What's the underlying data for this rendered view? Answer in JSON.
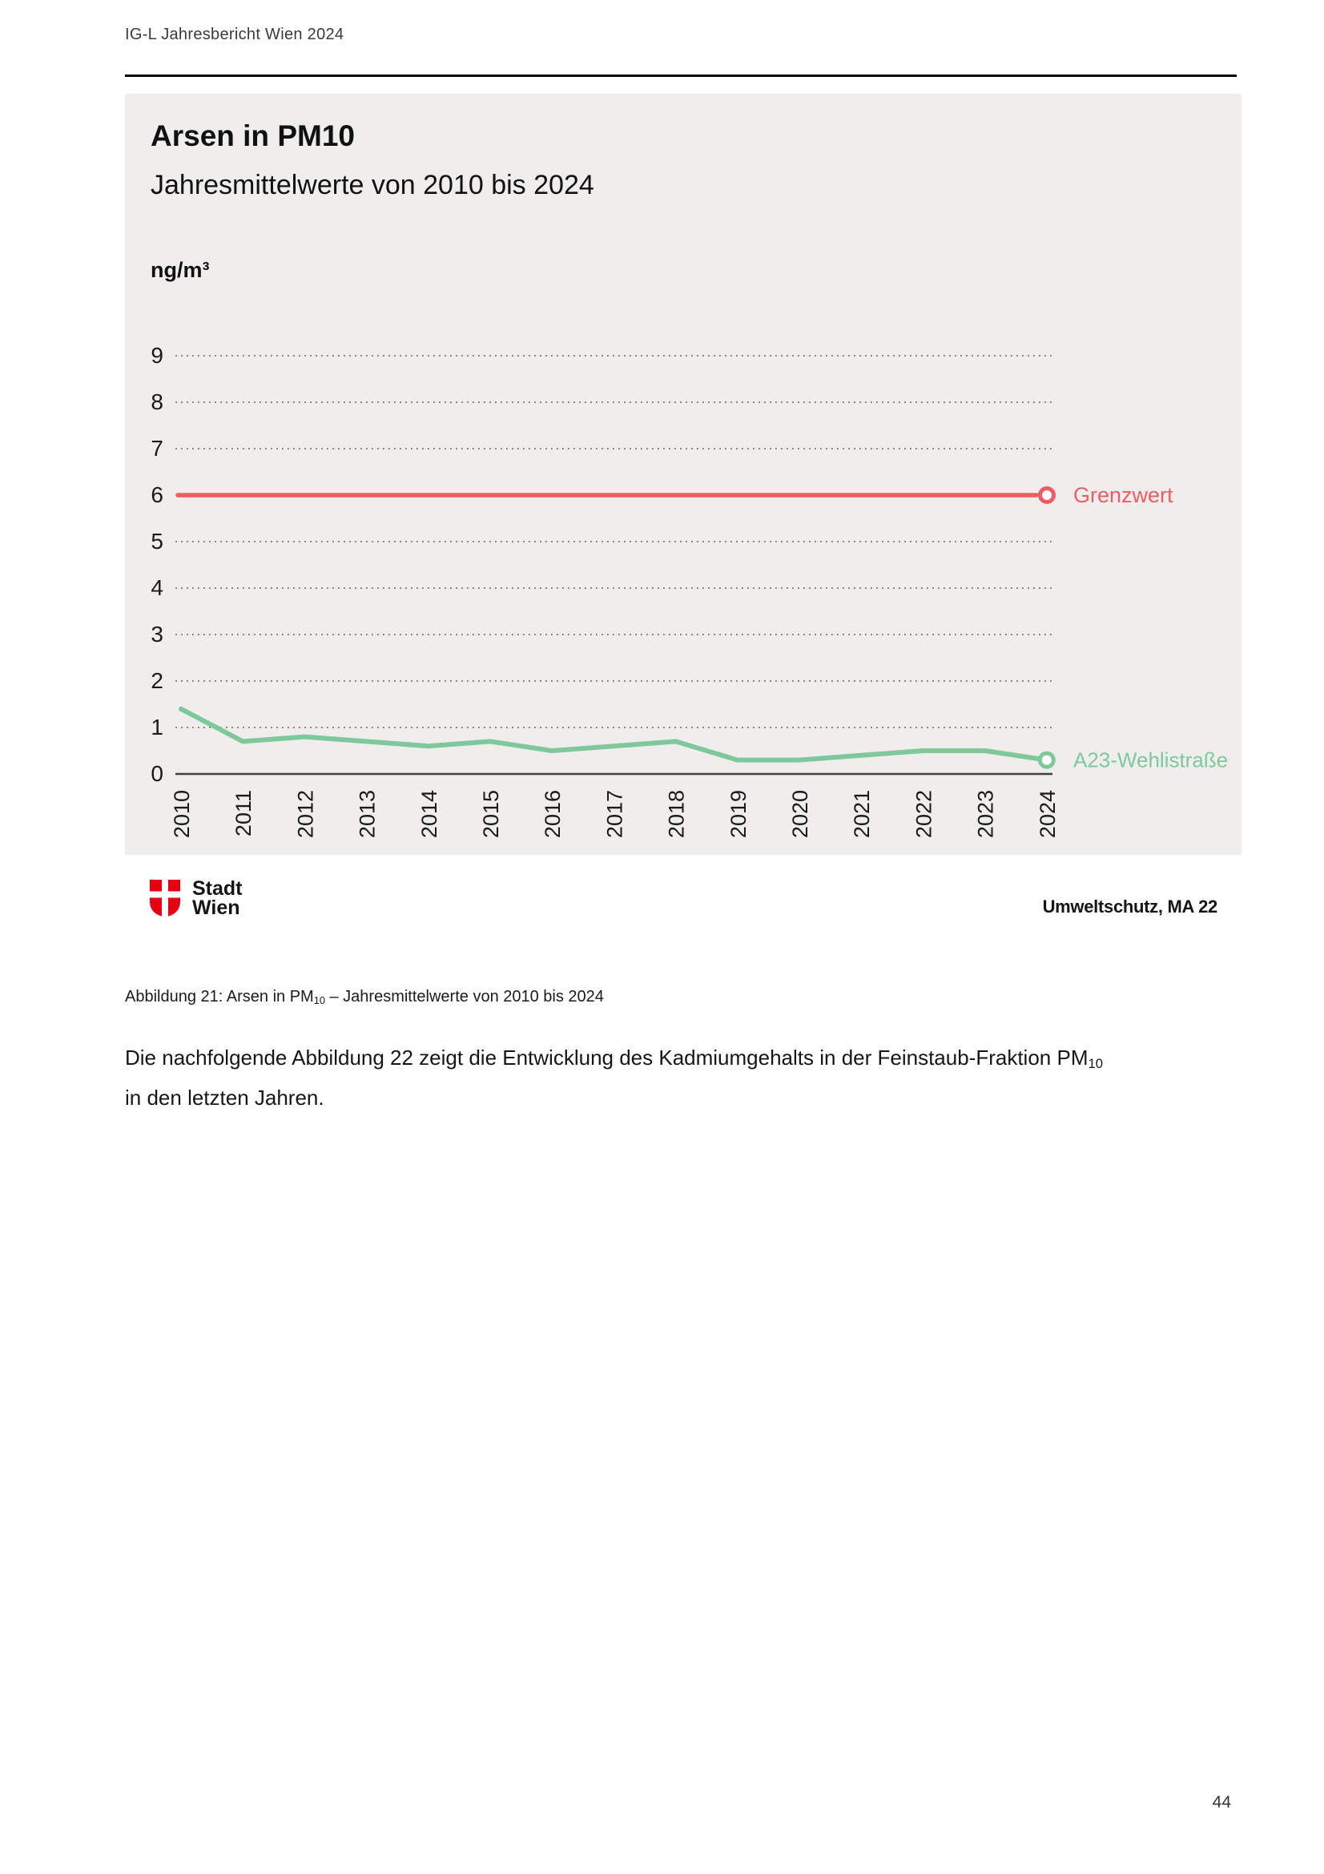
{
  "page": {
    "header_title": "IG-L Jahresbericht Wien 2024",
    "page_number": "44"
  },
  "figure": {
    "title": "Arsen in PM10",
    "subtitle": "Jahresmittelwerte von 2010 bis 2024",
    "unit_label": "ng/m³",
    "logo": {
      "line1": "Stadt",
      "line2": "Wien"
    },
    "attribution": "Umweltschutz, MA 22",
    "caption": {
      "text_before_sub": "Abbildung 21: Arsen in PM",
      "subscript": "10",
      "text_after_sub": " – Jahresmittelwerte von 2010 bis 2024"
    }
  },
  "body": {
    "text_before_sub": "Die nachfolgende Abbildung 22 zeigt die Entwicklung des Kadmiumgehalts in der Feinstaub-Fraktion PM",
    "subscript": "10",
    "text_after_sub": "in den letzten Jahren."
  },
  "chart_data": {
    "type": "line",
    "title": "Arsen in PM10",
    "subtitle": "Jahresmittelwerte von 2010 bis 2024",
    "ylabel": "ng/m³",
    "xlabel": "",
    "ylim": [
      0,
      9
    ],
    "ytick_step": 1,
    "grid": "horizontal-dotted",
    "legend_position": "end-of-line-labels",
    "categories": [
      "2010",
      "2011",
      "2012",
      "2013",
      "2014",
      "2015",
      "2016",
      "2017",
      "2018",
      "2019",
      "2020",
      "2021",
      "2022",
      "2023",
      "2024"
    ],
    "series": [
      {
        "name": "Grenzwert",
        "role": "limit",
        "value": 6,
        "color": "#f15b63"
      },
      {
        "name": "A23-Wehlistraße",
        "role": "data",
        "color": "#7ec89b",
        "values": [
          1.4,
          0.7,
          0.8,
          0.7,
          0.6,
          0.7,
          0.5,
          0.6,
          0.7,
          0.3,
          0.3,
          0.4,
          0.5,
          0.5,
          0.3
        ]
      }
    ]
  },
  "colors": {
    "panel_background": "#efeeec",
    "limit_line": "#f15b63",
    "data_line": "#7ec89b",
    "logo_red": "#e60012",
    "grid_dots": "#4a4a4a",
    "axis": "#3f3f3f"
  }
}
